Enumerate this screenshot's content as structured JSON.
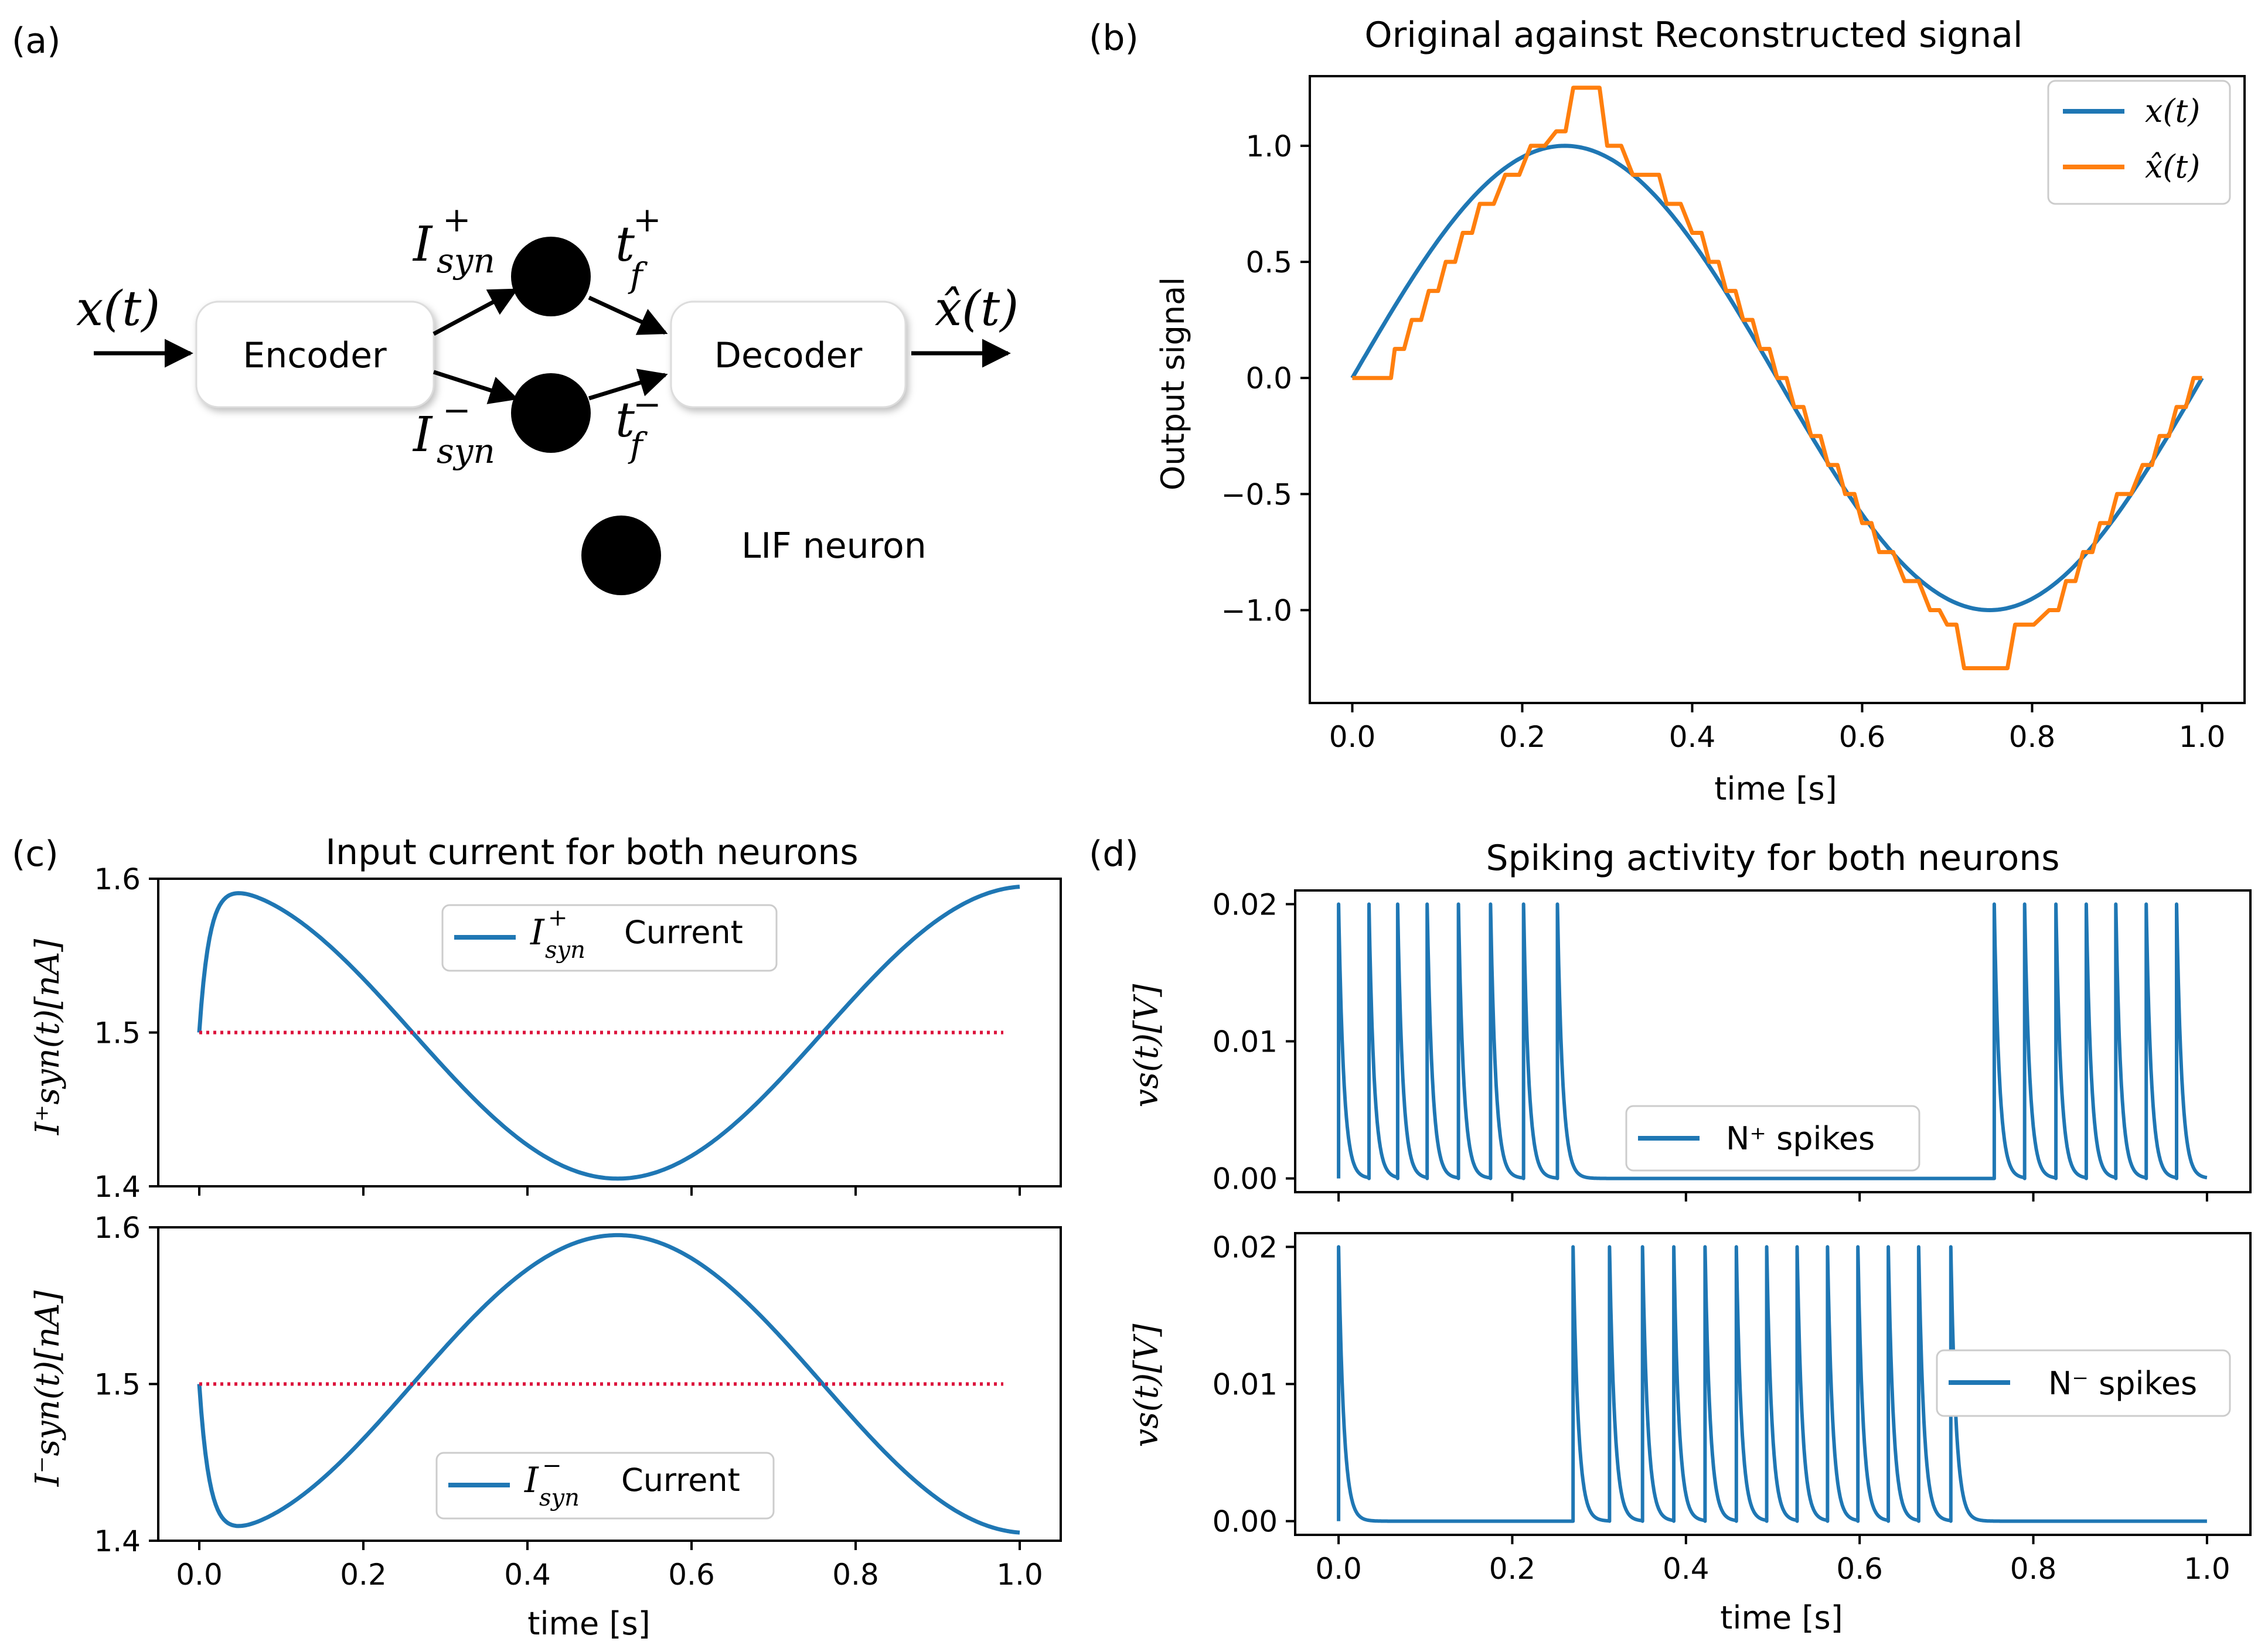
{
  "colors": {
    "blue": "#1f77b4",
    "orange": "#ff7f0e",
    "ref": "#dc143c"
  },
  "diagram": {
    "panel_label": "(a)",
    "input_label": "x(t)",
    "encoder_label": "Encoder",
    "decoder_label": "Decoder",
    "output_label": "x̂(t)",
    "i_plus_main": "I",
    "i_plus_sup": "+",
    "i_plus_sub": "syn",
    "i_minus_main": "I",
    "i_minus_sup": "−",
    "i_minus_sub": "syn",
    "t_plus_main": "t",
    "t_plus_sup": "+",
    "t_plus_sub": "f",
    "t_minus_main": "t",
    "t_minus_sup": "−",
    "t_minus_sub": "f",
    "legend_label": "LIF neuron"
  },
  "panel_b": {
    "panel_label": "(b)",
    "legend_x": "x(t)",
    "legend_xhat": "x̂(t)"
  },
  "panel_c": {
    "panel_label": "(c)",
    "top_legend_main": "I",
    "top_legend_sup": "+",
    "top_legend_sub": "syn",
    "top_legend_suffix": "Current",
    "bot_legend_main": "I",
    "bot_legend_sup": "−",
    "bot_legend_sub": "syn",
    "bot_legend_suffix": "Current",
    "top_ylabel": "I⁺syn(t)[nA]",
    "bot_ylabel": "I⁻syn(t)[nA]"
  },
  "panel_d": {
    "panel_label": "(d)",
    "top_legend": "N⁺ spikes",
    "bot_legend": "N⁻ spikes",
    "ylabel": "vs(t)[V]"
  },
  "chart_data": [
    {
      "id": "b",
      "type": "line",
      "title": "Original against Reconstructed signal",
      "xlabel": "time [s]",
      "ylabel": "Output signal",
      "xlim": [
        -0.05,
        1.05
      ],
      "ylim": [
        -1.4,
        1.3
      ],
      "xticks": [
        "0.0",
        "0.2",
        "0.4",
        "0.6",
        "0.8",
        "1.0"
      ],
      "yticks": [
        "−1.0",
        "−0.5",
        "0.0",
        "0.5",
        "1.0"
      ],
      "xtick_values": [
        0,
        0.2,
        0.4,
        0.6,
        0.8,
        1.0
      ],
      "ytick_values": [
        -1.0,
        -0.5,
        0.0,
        0.5,
        1.0
      ],
      "series": [
        {
          "name": "x(t)",
          "function": "sin(2*pi*t)",
          "samples": 200
        },
        {
          "name": "x̂(t)",
          "step_size": 0.125,
          "values_at": [
            [
              0,
              0
            ],
            [
              0.04,
              0
            ],
            [
              0.05,
              0.125
            ],
            [
              0.07,
              0.25
            ],
            [
              0.09,
              0.375
            ],
            [
              0.11,
              0.5
            ],
            [
              0.13,
              0.625
            ],
            [
              0.15,
              0.75
            ],
            [
              0.18,
              0.875
            ],
            [
              0.21,
              1.0
            ],
            [
              0.24,
              1.0625
            ],
            [
              0.26,
              1.25
            ],
            [
              0.28,
              1.25
            ],
            [
              0.3,
              1.0
            ],
            [
              0.33,
              0.875
            ],
            [
              0.35,
              0.875
            ],
            [
              0.37,
              0.75
            ],
            [
              0.4,
              0.625
            ],
            [
              0.42,
              0.5
            ],
            [
              0.44,
              0.375
            ],
            [
              0.46,
              0.25
            ],
            [
              0.48,
              0.125
            ],
            [
              0.5,
              0
            ],
            [
              0.52,
              -0.125
            ],
            [
              0.54,
              -0.25
            ],
            [
              0.56,
              -0.375
            ],
            [
              0.58,
              -0.5
            ],
            [
              0.6,
              -0.625
            ],
            [
              0.62,
              -0.75
            ],
            [
              0.65,
              -0.875
            ],
            [
              0.68,
              -1.0
            ],
            [
              0.7,
              -1.0625
            ],
            [
              0.72,
              -1.25
            ],
            [
              0.76,
              -1.25
            ],
            [
              0.78,
              -1.0625
            ],
            [
              0.82,
              -1.0
            ],
            [
              0.84,
              -0.875
            ],
            [
              0.86,
              -0.75
            ],
            [
              0.88,
              -0.625
            ],
            [
              0.9,
              -0.5
            ],
            [
              0.93,
              -0.375
            ],
            [
              0.95,
              -0.25
            ],
            [
              0.97,
              -0.125
            ],
            [
              0.99,
              0
            ],
            [
              1.0,
              0
            ]
          ]
        }
      ]
    },
    {
      "id": "c_top",
      "type": "line",
      "title": "Input current for both neurons",
      "xlim": [
        -0.05,
        1.05
      ],
      "ylim": [
        1.4,
        1.6
      ],
      "yticks": [
        "1.4",
        "1.5",
        "1.6"
      ],
      "ytick_values": [
        1.4,
        1.5,
        1.6
      ],
      "series": [
        {
          "name": "I+syn Current",
          "function": "1.5+0.095*sin(2*pi*t+pi/2)*(1-exp(-t/0.012))"
        },
        {
          "name": "reference",
          "style": "dotted",
          "y": 1.5,
          "x_range": [
            0,
            0.98
          ]
        }
      ]
    },
    {
      "id": "c_bottom",
      "type": "line",
      "xlabel": "time [s]",
      "xlim": [
        -0.05,
        1.05
      ],
      "ylim": [
        1.4,
        1.6
      ],
      "xticks": [
        "0.0",
        "0.2",
        "0.4",
        "0.6",
        "0.8",
        "1.0"
      ],
      "xtick_values": [
        0,
        0.2,
        0.4,
        0.6,
        0.8,
        1.0
      ],
      "yticks": [
        "1.4",
        "1.5",
        "1.6"
      ],
      "ytick_values": [
        1.4,
        1.5,
        1.6
      ],
      "series": [
        {
          "name": "I−syn Current",
          "function": "1.5-0.095*sin(2*pi*t+pi/2)*(1-exp(-t/0.012))"
        },
        {
          "name": "reference",
          "style": "dotted",
          "y": 1.5,
          "x_range": [
            0,
            0.98
          ]
        }
      ]
    },
    {
      "id": "d_top",
      "type": "line",
      "title": "Spiking activity for both neurons",
      "xlim": [
        -0.05,
        1.05
      ],
      "ylim": [
        -0.001,
        0.021
      ],
      "yticks": [
        "0.00",
        "0.01",
        "0.02"
      ],
      "ytick_values": [
        0,
        0.01,
        0.02
      ],
      "series": [
        {
          "name": "N+ spikes",
          "peak": 0.02,
          "decay": 0.006,
          "spike_times": [
            0.0,
            0.035,
            0.068,
            0.102,
            0.138,
            0.175,
            0.213,
            0.252,
            0.755,
            0.79,
            0.826,
            0.861,
            0.895,
            0.93,
            0.965
          ]
        }
      ]
    },
    {
      "id": "d_bottom",
      "type": "line",
      "xlabel": "time [s]",
      "xlim": [
        -0.05,
        1.05
      ],
      "ylim": [
        -0.001,
        0.021
      ],
      "xticks": [
        "0.0",
        "0.2",
        "0.4",
        "0.6",
        "0.8",
        "1.0"
      ],
      "xtick_values": [
        0,
        0.2,
        0.4,
        0.6,
        0.8,
        1.0
      ],
      "yticks": [
        "0.00",
        "0.01",
        "0.02"
      ],
      "ytick_values": [
        0,
        0.01,
        0.02
      ],
      "series": [
        {
          "name": "N− spikes",
          "peak": 0.02,
          "decay": 0.006,
          "spike_times": [
            0.0,
            0.27,
            0.312,
            0.35,
            0.386,
            0.422,
            0.458,
            0.493,
            0.528,
            0.563,
            0.598,
            0.633,
            0.668,
            0.705
          ]
        }
      ]
    }
  ]
}
